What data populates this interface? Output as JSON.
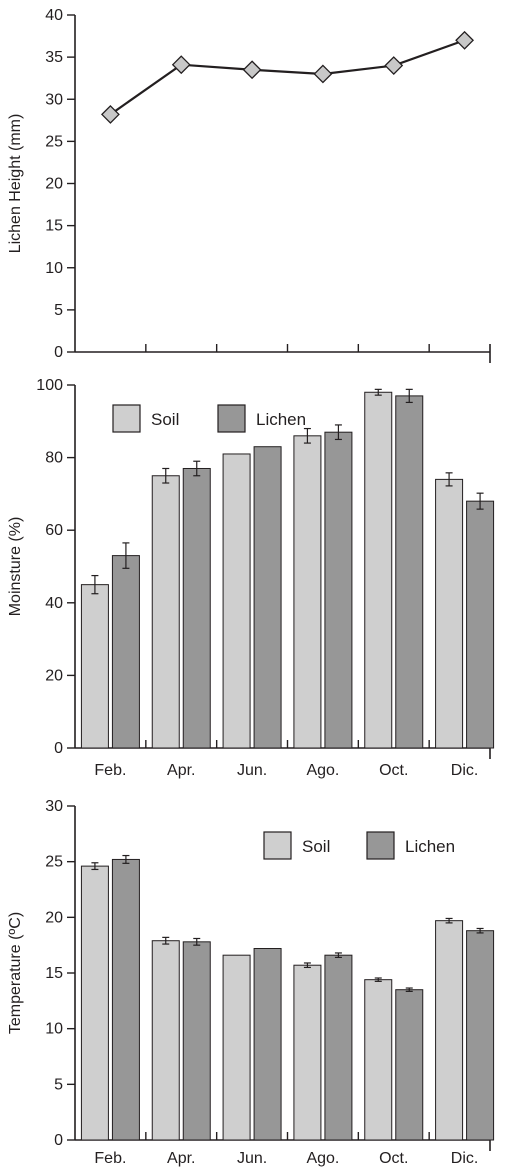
{
  "colors": {
    "soil": "#cfcfcf",
    "lichen": "#979797",
    "marker": "#c8c8c8",
    "line": "#231f20"
  },
  "chart_data": [
    {
      "type": "line",
      "ylabel": "Lichen Height (mm)",
      "ylim": [
        0,
        40
      ],
      "yticks": [
        "0",
        "5",
        "10",
        "15",
        "20",
        "25",
        "30",
        "35",
        "40"
      ],
      "categories": [
        "Feb.",
        "Apr.",
        "Jun.",
        "Ago.",
        "Oct.",
        "Dic."
      ],
      "show_x_labels": false,
      "values": [
        28.2,
        34.1,
        33.5,
        33.0,
        34.0,
        37.0
      ],
      "marker": "diamond"
    },
    {
      "type": "bar",
      "ylabel": "Moinsture (%)",
      "ylim": [
        0,
        100
      ],
      "yticks": [
        "0",
        "20",
        "40",
        "60",
        "80",
        "100"
      ],
      "categories": [
        "Feb.",
        "Apr.",
        "Jun.",
        "Ago.",
        "Oct.",
        "Dic."
      ],
      "legend": "top-left",
      "series": [
        {
          "name": "Soil",
          "values": [
            45,
            75,
            81,
            86,
            98,
            74
          ],
          "error": [
            2.5,
            2.0,
            0,
            2.0,
            0.8,
            1.8
          ]
        },
        {
          "name": "Lichen",
          "values": [
            53,
            77,
            83,
            87,
            97,
            68
          ],
          "error": [
            3.5,
            2.0,
            0,
            2.0,
            1.8,
            2.2
          ]
        }
      ]
    },
    {
      "type": "bar",
      "ylabel": "Temperature (ºC)",
      "ylim": [
        0,
        30
      ],
      "yticks": [
        "0",
        "5",
        "10",
        "15",
        "20",
        "25",
        "30"
      ],
      "categories": [
        "Feb.",
        "Apr.",
        "Jun.",
        "Ago.",
        "Oct.",
        "Dic."
      ],
      "legend": "top-right",
      "series": [
        {
          "name": "Soil",
          "values": [
            24.6,
            17.9,
            16.6,
            15.7,
            14.4,
            19.7
          ],
          "error": [
            0.3,
            0.3,
            0,
            0.2,
            0.15,
            0.2
          ]
        },
        {
          "name": "Lichen",
          "values": [
            25.2,
            17.8,
            17.2,
            16.6,
            13.5,
            18.8
          ],
          "error": [
            0.35,
            0.3,
            0,
            0.2,
            0.15,
            0.2
          ]
        }
      ]
    }
  ]
}
